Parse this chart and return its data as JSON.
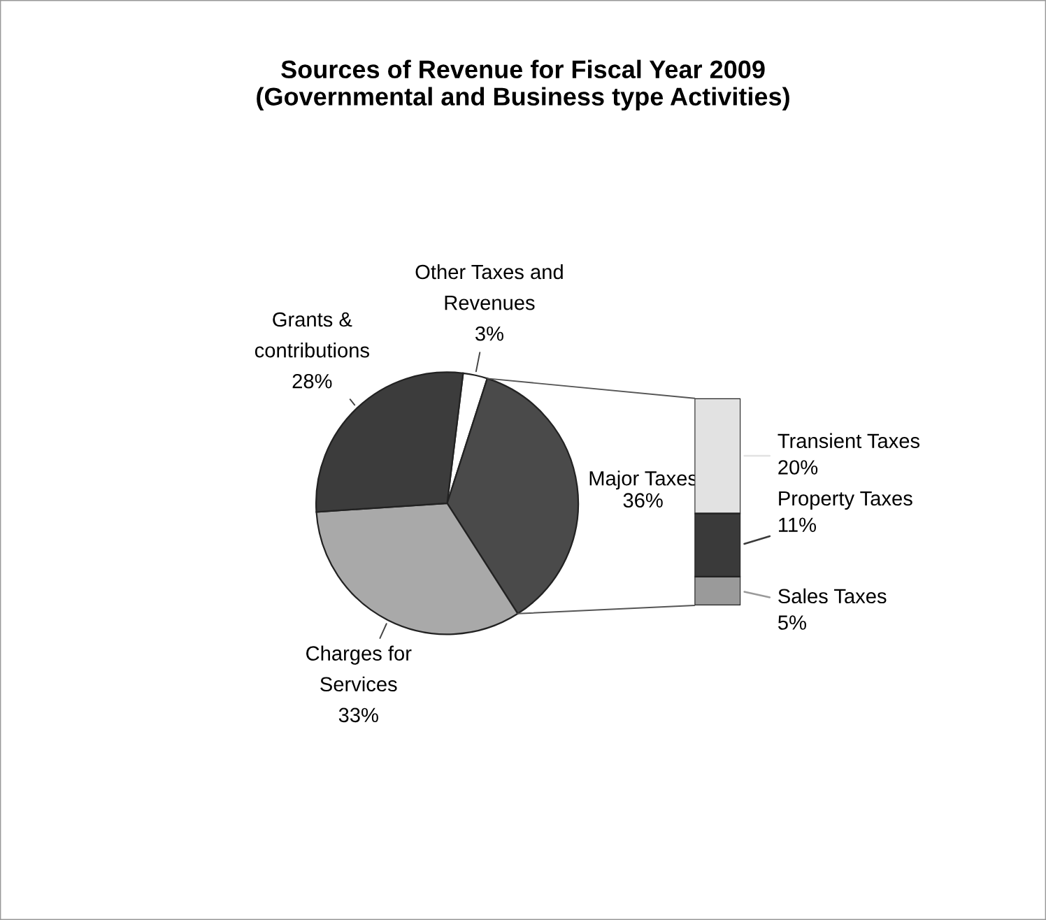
{
  "chart_data": [
    {
      "type": "pie",
      "title": "Sources of Revenue for Fiscal Year 2009\n(Governmental and Business type Activities)",
      "categories": [
        "Other Taxes and\nRevenues",
        "Major Taxes",
        "Charges for\nServices",
        "Grants &\ncontributions"
      ],
      "values": [
        3,
        36,
        33,
        28
      ],
      "colors": [
        "#ffffff",
        "#4a4a4a",
        "#a9a9a9",
        "#3c3c3c"
      ],
      "value_labels": [
        "3%",
        "36%",
        "33%",
        "28%"
      ]
    },
    {
      "type": "bar",
      "stacked": true,
      "categories": [
        null
      ],
      "series": [
        {
          "name": "Sales Taxes",
          "color": "#9a9a9a",
          "values": [
            5
          ],
          "value_labels": [
            "5%"
          ]
        },
        {
          "name": "Property Taxes",
          "color": "#3a3a3a",
          "values": [
            11
          ],
          "value_labels": [
            "11%"
          ]
        },
        {
          "name": "Transient Taxes",
          "color": "#e2e2e2",
          "values": [
            20
          ],
          "value_labels": [
            "20%"
          ]
        }
      ]
    }
  ]
}
